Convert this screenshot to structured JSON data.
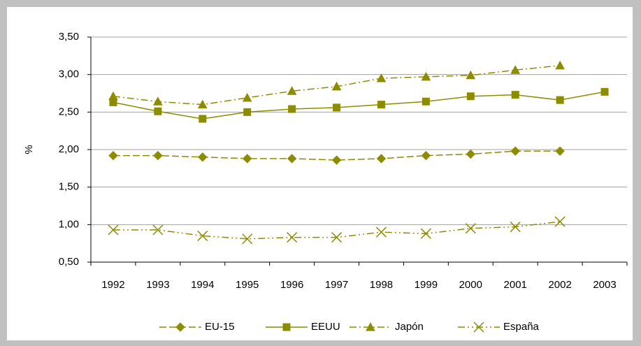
{
  "chart_data": {
    "type": "line",
    "y_label": "%",
    "categories": [
      "1992",
      "1993",
      "1994",
      "1995",
      "1996",
      "1997",
      "1998",
      "1999",
      "2000",
      "2001",
      "2002",
      "2003"
    ],
    "series": [
      {
        "name": "EU-15",
        "color": "#8c8c00",
        "dash": "dashed",
        "marker": "diamond",
        "values": [
          1.92,
          1.92,
          1.9,
          1.88,
          1.88,
          1.86,
          1.88,
          1.92,
          1.94,
          1.98,
          1.98,
          null
        ]
      },
      {
        "name": "EEUU",
        "color": "#8c8c00",
        "dash": "solid",
        "marker": "square",
        "values": [
          2.63,
          2.51,
          2.41,
          2.5,
          2.54,
          2.56,
          2.6,
          2.64,
          2.71,
          2.73,
          2.66,
          2.77
        ]
      },
      {
        "name": "Japón",
        "color": "#8c8c00",
        "dash": "dash-dot",
        "marker": "triangle",
        "values": [
          2.71,
          2.64,
          2.6,
          2.69,
          2.78,
          2.84,
          2.95,
          2.97,
          2.99,
          3.06,
          3.12,
          null
        ]
      },
      {
        "name": "España",
        "color": "#8c8c00",
        "dash": "dash-dot-dot",
        "marker": "x",
        "values": [
          0.93,
          0.93,
          0.85,
          0.81,
          0.83,
          0.83,
          0.9,
          0.88,
          0.95,
          0.97,
          1.04,
          null
        ]
      }
    ],
    "ylim": [
      0.5,
      3.5
    ],
    "yticks": [
      {
        "value": 0.5,
        "label": "0,50"
      },
      {
        "value": 1.0,
        "label": "1,00"
      },
      {
        "value": 1.5,
        "label": "1,50"
      },
      {
        "value": 2.0,
        "label": "2,00"
      },
      {
        "value": 2.5,
        "label": "2,50"
      },
      {
        "value": 3.0,
        "label": "3,00"
      },
      {
        "value": 3.5,
        "label": "3,50"
      }
    ],
    "grid": true,
    "legend": "bottom"
  }
}
